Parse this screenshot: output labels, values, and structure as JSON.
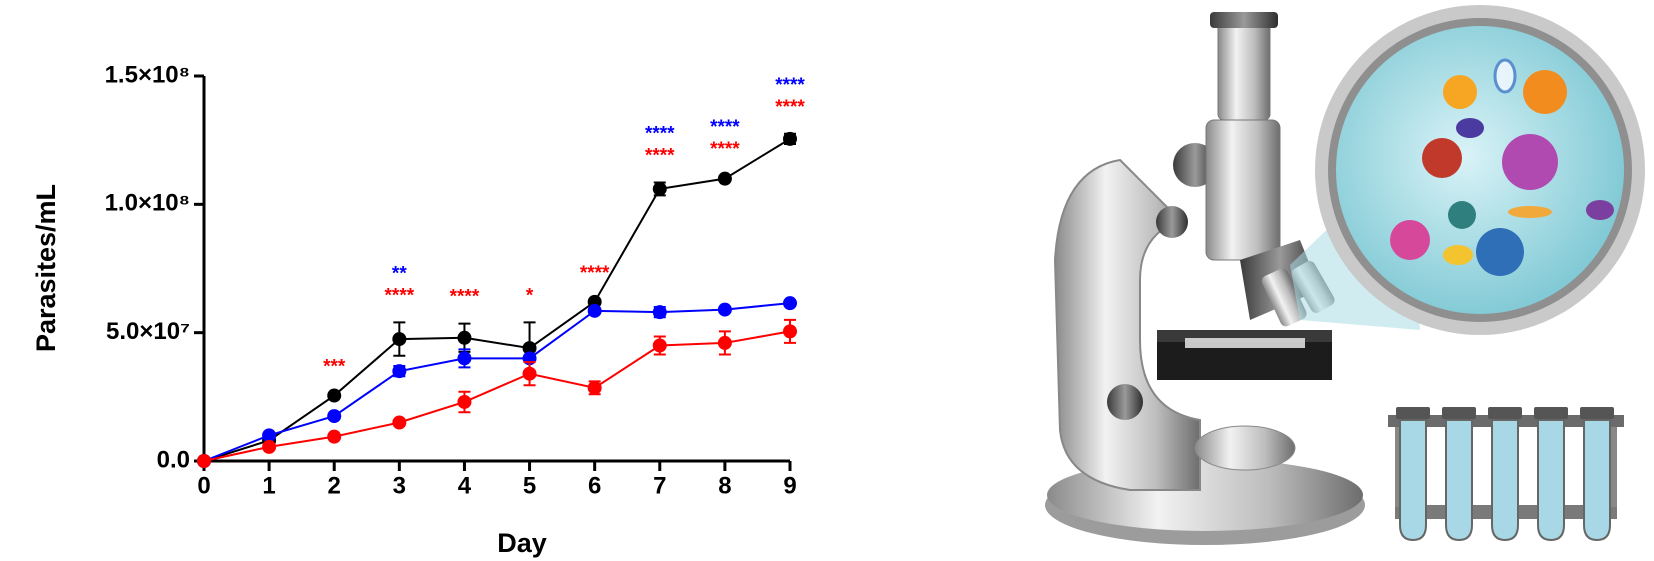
{
  "chart_data": {
    "type": "line",
    "x_label": "Day",
    "y_label": "Parasites/mL",
    "x": [
      0,
      1,
      2,
      3,
      4,
      5,
      6,
      7,
      8,
      9
    ],
    "series": [
      {
        "color": "#000000",
        "values": [
          0,
          8000000,
          25500000,
          47500000,
          48000000,
          44000000,
          62000000,
          106000000,
          110000000,
          125500000
        ],
        "errors": [
          500000,
          1000000,
          800000,
          6500000,
          5500000,
          10000000,
          800000,
          2500000,
          1000000,
          2000000
        ]
      },
      {
        "color": "#0000ff",
        "values": [
          0,
          10000000,
          17500000,
          35000000,
          40000000,
          40000000,
          58500000,
          58000000,
          59000000,
          61500000
        ],
        "errors": [
          500000,
          800000,
          800000,
          2000000,
          3500000,
          1000000,
          800000,
          2000000,
          800000,
          800000
        ]
      },
      {
        "color": "#ff0000",
        "values": [
          0,
          5500000,
          9500000,
          15000000,
          23000000,
          34000000,
          28500000,
          45000000,
          46000000,
          50500000
        ],
        "errors": [
          500000,
          800000,
          800000,
          800000,
          4000000,
          4500000,
          2500000,
          3500000,
          4500000,
          4500000
        ]
      }
    ],
    "annotations": [
      {
        "x": 2,
        "text": "***",
        "color": "#ff0000"
      },
      {
        "x": 3,
        "text": "****",
        "color": "#ff0000"
      },
      {
        "x": 3,
        "text": "**",
        "color": "#0000ff"
      },
      {
        "x": 4,
        "text": "****",
        "color": "#ff0000"
      },
      {
        "x": 5,
        "text": "*",
        "color": "#ff0000"
      },
      {
        "x": 6,
        "text": "****",
        "color": "#ff0000"
      },
      {
        "x": 7,
        "text": "****",
        "color": "#ff0000"
      },
      {
        "x": 7,
        "text": "****",
        "color": "#0000ff"
      },
      {
        "x": 8,
        "text": "****",
        "color": "#ff0000"
      },
      {
        "x": 8,
        "text": "****",
        "color": "#0000ff"
      },
      {
        "x": 9,
        "text": "****",
        "color": "#ff0000"
      },
      {
        "x": 9,
        "text": "****",
        "color": "#0000ff"
      }
    ],
    "xlim": [
      0,
      9
    ],
    "xticks": [
      0,
      1,
      2,
      3,
      4,
      5,
      6,
      7,
      8,
      9
    ],
    "ylim": [
      0,
      150000000
    ],
    "yticks": [
      {
        "value": 0,
        "label": "0.0"
      },
      {
        "value": 50000000,
        "label": "5.0×10⁷"
      },
      {
        "value": 100000000,
        "label": "1.0×10⁸"
      },
      {
        "value": 150000000,
        "label": "1.5×10⁸"
      }
    ],
    "grid": false
  }
}
